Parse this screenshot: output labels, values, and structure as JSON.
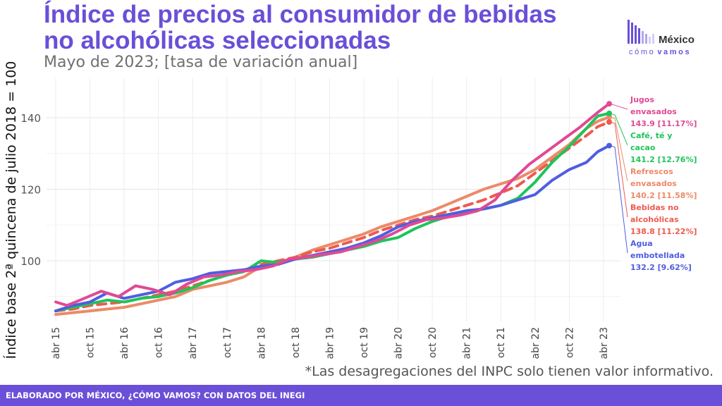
{
  "header": {
    "title": "Índice de precios al consumidor de bebidas no alcohólicas seleccionadas",
    "subtitle": "Mayo de 2023; [tasa de variación anual]"
  },
  "logo": {
    "line1": "México",
    "line2_a": "cómo",
    "line2_b": "vamos"
  },
  "footnote": "*Las desagregaciones del INPC solo tienen valor informativo.",
  "footer": {
    "text": "ELABORADO POR MÉXICO, ¿CÓMO VAMOS? CON DATOS DEL INEGI"
  },
  "colors": {
    "brand": "#6a4fd8",
    "jugos": "#e04a94",
    "cafe": "#1fc45a",
    "refrescos": "#ec8a68",
    "bebidas": "#ee5a4e",
    "agua": "#4f5ee0"
  },
  "chart_data": {
    "type": "line",
    "ylabel": "Índice base 2ª quincena de julio 2018 = 100",
    "ylim": [
      84,
      148
    ],
    "yticks": [
      100,
      120,
      140
    ],
    "xlim": [
      "2015-04",
      "2023-05"
    ],
    "xticks": [
      "abr 15",
      "oct 15",
      "abr 16",
      "oct 16",
      "abr 17",
      "oct 17",
      "abr 18",
      "oct 18",
      "abr 19",
      "oct 19",
      "abr 20",
      "oct 20",
      "abr 21",
      "oct 21",
      "abr 22",
      "oct 22",
      "abr 23"
    ],
    "grid": true,
    "legend": "direct labels at right",
    "series": [
      {
        "key": "jugos",
        "color_key": "jugos",
        "dashed": false,
        "label_line1": "Jugos",
        "label_line2": "envasados",
        "value_label": "143.9 [11.17%]",
        "points": [
          [
            "2015-04",
            88.5
          ],
          [
            "2015-06",
            87.5
          ],
          [
            "2015-09",
            89.5
          ],
          [
            "2015-12",
            91.5
          ],
          [
            "2016-03",
            90.0
          ],
          [
            "2016-06",
            93.0
          ],
          [
            "2016-09",
            92.0
          ],
          [
            "2016-12",
            90.5
          ],
          [
            "2017-03",
            93.5
          ],
          [
            "2017-06",
            95.5
          ],
          [
            "2017-09",
            96.0
          ],
          [
            "2017-12",
            97.0
          ],
          [
            "2018-03",
            97.5
          ],
          [
            "2018-06",
            98.5
          ],
          [
            "2018-09",
            100.5
          ],
          [
            "2018-12",
            101.0
          ],
          [
            "2019-03",
            101.8
          ],
          [
            "2019-06",
            102.5
          ],
          [
            "2019-09",
            104.0
          ],
          [
            "2019-12",
            105.5
          ],
          [
            "2020-03",
            107.5
          ],
          [
            "2020-06",
            110.0
          ],
          [
            "2020-09",
            111.5
          ],
          [
            "2020-12",
            112.0
          ],
          [
            "2021-03",
            112.8
          ],
          [
            "2021-06",
            114.0
          ],
          [
            "2021-09",
            117.0
          ],
          [
            "2021-10",
            119.0
          ],
          [
            "2021-12",
            122.5
          ],
          [
            "2022-03",
            127.0
          ],
          [
            "2022-06",
            130.5
          ],
          [
            "2022-09",
            134.0
          ],
          [
            "2022-12",
            137.5
          ],
          [
            "2023-03",
            141.5
          ],
          [
            "2023-05",
            143.9
          ]
        ]
      },
      {
        "key": "cafe",
        "color_key": "cafe",
        "dashed": false,
        "label_line1": "Café, té y",
        "label_line2": "cacao",
        "value_label": "141.2 [12.76%]",
        "points": [
          [
            "2015-04",
            86.0
          ],
          [
            "2015-07",
            87.0
          ],
          [
            "2015-10",
            88.0
          ],
          [
            "2016-01",
            89.0
          ],
          [
            "2016-04",
            88.5
          ],
          [
            "2016-07",
            89.5
          ],
          [
            "2016-10",
            90.0
          ],
          [
            "2017-01",
            91.0
          ],
          [
            "2017-04",
            92.5
          ],
          [
            "2017-07",
            94.5
          ],
          [
            "2017-10",
            96.0
          ],
          [
            "2018-01",
            97.0
          ],
          [
            "2018-04",
            100.0
          ],
          [
            "2018-07",
            99.5
          ],
          [
            "2018-10",
            100.5
          ],
          [
            "2019-01",
            101.0
          ],
          [
            "2019-04",
            102.0
          ],
          [
            "2019-07",
            103.0
          ],
          [
            "2019-10",
            104.0
          ],
          [
            "2020-01",
            105.5
          ],
          [
            "2020-04",
            106.5
          ],
          [
            "2020-07",
            109.0
          ],
          [
            "2020-10",
            111.0
          ],
          [
            "2021-01",
            112.5
          ],
          [
            "2021-04",
            113.5
          ],
          [
            "2021-07",
            114.5
          ],
          [
            "2021-10",
            115.5
          ],
          [
            "2022-01",
            117.5
          ],
          [
            "2022-04",
            122.0
          ],
          [
            "2022-07",
            127.5
          ],
          [
            "2022-10",
            132.0
          ],
          [
            "2023-01",
            137.0
          ],
          [
            "2023-03",
            140.5
          ],
          [
            "2023-05",
            141.2
          ]
        ]
      },
      {
        "key": "refrescos",
        "color_key": "refrescos",
        "dashed": false,
        "label_line1": "Refrescos",
        "label_line2": "envasados",
        "value_label": "140.2 [11.58%]",
        "points": [
          [
            "2015-04",
            85.0
          ],
          [
            "2015-07",
            85.5
          ],
          [
            "2015-10",
            86.0
          ],
          [
            "2016-01",
            86.5
          ],
          [
            "2016-04",
            87.0
          ],
          [
            "2016-07",
            88.0
          ],
          [
            "2016-10",
            89.0
          ],
          [
            "2017-01",
            90.0
          ],
          [
            "2017-04",
            92.0
          ],
          [
            "2017-07",
            93.0
          ],
          [
            "2017-10",
            94.0
          ],
          [
            "2018-01",
            95.5
          ],
          [
            "2018-04",
            98.5
          ],
          [
            "2018-07",
            99.5
          ],
          [
            "2018-10",
            101.0
          ],
          [
            "2019-01",
            103.0
          ],
          [
            "2019-04",
            104.5
          ],
          [
            "2019-07",
            106.0
          ],
          [
            "2019-10",
            107.5
          ],
          [
            "2020-01",
            109.5
          ],
          [
            "2020-04",
            111.0
          ],
          [
            "2020-07",
            112.5
          ],
          [
            "2020-10",
            114.0
          ],
          [
            "2021-01",
            116.0
          ],
          [
            "2021-04",
            118.0
          ],
          [
            "2021-07",
            120.0
          ],
          [
            "2021-10",
            121.5
          ],
          [
            "2022-01",
            123.0
          ],
          [
            "2022-04",
            125.5
          ],
          [
            "2022-07",
            129.0
          ],
          [
            "2022-10",
            132.5
          ],
          [
            "2023-01",
            137.0
          ],
          [
            "2023-03",
            139.0
          ],
          [
            "2023-05",
            140.2
          ]
        ]
      },
      {
        "key": "bebidas",
        "color_key": "bebidas",
        "dashed": true,
        "label_line1": "Bebidas no",
        "label_line2": "alcohólicas",
        "value_label": "138.8 [11.22%]",
        "points": [
          [
            "2015-04",
            86.0
          ],
          [
            "2015-07",
            86.5
          ],
          [
            "2015-10",
            87.5
          ],
          [
            "2016-01",
            88.0
          ],
          [
            "2016-04",
            88.5
          ],
          [
            "2016-07",
            89.5
          ],
          [
            "2016-10",
            90.5
          ],
          [
            "2017-01",
            91.5
          ],
          [
            "2017-04",
            93.0
          ],
          [
            "2017-07",
            94.5
          ],
          [
            "2017-10",
            96.0
          ],
          [
            "2018-01",
            97.0
          ],
          [
            "2018-04",
            99.0
          ],
          [
            "2018-07",
            100.0
          ],
          [
            "2018-10",
            101.0
          ],
          [
            "2019-01",
            102.5
          ],
          [
            "2019-04",
            103.5
          ],
          [
            "2019-07",
            105.0
          ],
          [
            "2019-10",
            106.5
          ],
          [
            "2020-01",
            108.5
          ],
          [
            "2020-04",
            110.0
          ],
          [
            "2020-07",
            111.5
          ],
          [
            "2020-10",
            112.5
          ],
          [
            "2021-01",
            114.0
          ],
          [
            "2021-04",
            115.5
          ],
          [
            "2021-07",
            117.0
          ],
          [
            "2021-10",
            119.0
          ],
          [
            "2022-01",
            121.0
          ],
          [
            "2022-04",
            124.5
          ],
          [
            "2022-07",
            128.0
          ],
          [
            "2022-10",
            131.5
          ],
          [
            "2023-01",
            135.0
          ],
          [
            "2023-03",
            137.5
          ],
          [
            "2023-05",
            138.8
          ]
        ]
      },
      {
        "key": "agua",
        "color_key": "agua",
        "dashed": false,
        "label_line1": "Agua",
        "label_line2": "embotellada",
        "value_label": "132.2 [9.62%]",
        "points": [
          [
            "2015-04",
            86.0
          ],
          [
            "2015-07",
            87.5
          ],
          [
            "2015-10",
            88.5
          ],
          [
            "2016-01",
            91.0
          ],
          [
            "2016-04",
            89.5
          ],
          [
            "2016-07",
            90.5
          ],
          [
            "2016-10",
            91.5
          ],
          [
            "2017-01",
            94.0
          ],
          [
            "2017-04",
            95.0
          ],
          [
            "2017-07",
            96.5
          ],
          [
            "2017-10",
            97.0
          ],
          [
            "2018-01",
            97.5
          ],
          [
            "2018-04",
            98.5
          ],
          [
            "2018-07",
            99.0
          ],
          [
            "2018-10",
            100.5
          ],
          [
            "2019-01",
            101.5
          ],
          [
            "2019-04",
            102.5
          ],
          [
            "2019-07",
            103.5
          ],
          [
            "2019-10",
            105.0
          ],
          [
            "2020-01",
            107.0
          ],
          [
            "2020-04",
            109.5
          ],
          [
            "2020-07",
            111.0
          ],
          [
            "2020-10",
            112.0
          ],
          [
            "2021-01",
            113.0
          ],
          [
            "2021-04",
            114.0
          ],
          [
            "2021-07",
            114.5
          ],
          [
            "2021-10",
            115.5
          ],
          [
            "2022-01",
            117.0
          ],
          [
            "2022-04",
            118.5
          ],
          [
            "2022-07",
            122.5
          ],
          [
            "2022-10",
            125.5
          ],
          [
            "2023-01",
            127.5
          ],
          [
            "2023-03",
            130.5
          ],
          [
            "2023-05",
            132.2
          ]
        ]
      }
    ]
  }
}
